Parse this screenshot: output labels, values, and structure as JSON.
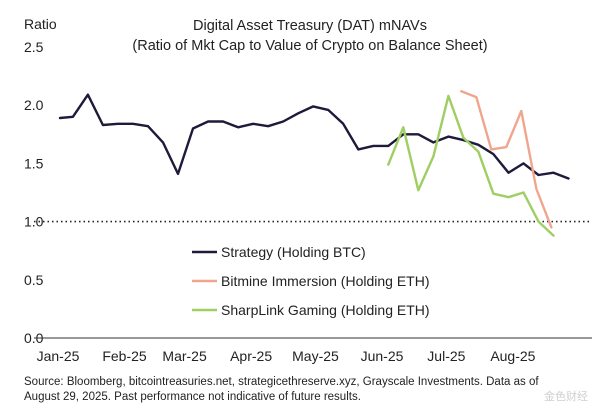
{
  "chart_data": {
    "type": "line",
    "title": "Digital Asset Treasury (DAT) mNAVs",
    "subtitle": "(Ratio of Mkt Cap to Value of Crypto on Balance Sheet)",
    "ylabel": "Ratio",
    "ylim": [
      0.0,
      2.5
    ],
    "yticks": [
      "2.5",
      "2.0",
      "1.5",
      "1.0",
      "0.5",
      "0.0"
    ],
    "xticks": [
      "Jan-25",
      "Feb-25",
      "Mar-25",
      "Apr-25",
      "May-25",
      "Jun-25",
      "Jul-25",
      "Aug-25"
    ],
    "x_start": "2025-01-01",
    "x_end": "2025-09-05",
    "reference_line": {
      "y": 1.0,
      "style": "dotted"
    },
    "grid": false,
    "legend_position": "center",
    "series": [
      {
        "name": "Strategy (Holding BTC)",
        "color": "#1d1a3a",
        "points": [
          [
            "2025-01-01",
            1.89
          ],
          [
            "2025-01-07",
            1.9
          ],
          [
            "2025-01-14",
            2.09
          ],
          [
            "2025-01-21",
            1.83
          ],
          [
            "2025-01-28",
            1.84
          ],
          [
            "2025-02-04",
            1.84
          ],
          [
            "2025-02-11",
            1.82
          ],
          [
            "2025-02-18",
            1.68
          ],
          [
            "2025-02-25",
            1.41
          ],
          [
            "2025-03-04",
            1.8
          ],
          [
            "2025-03-11",
            1.86
          ],
          [
            "2025-03-18",
            1.86
          ],
          [
            "2025-03-25",
            1.81
          ],
          [
            "2025-04-01",
            1.84
          ],
          [
            "2025-04-08",
            1.82
          ],
          [
            "2025-04-15",
            1.86
          ],
          [
            "2025-04-22",
            1.93
          ],
          [
            "2025-04-29",
            1.99
          ],
          [
            "2025-05-06",
            1.96
          ],
          [
            "2025-05-13",
            1.84
          ],
          [
            "2025-05-20",
            1.62
          ],
          [
            "2025-05-27",
            1.65
          ],
          [
            "2025-06-03",
            1.65
          ],
          [
            "2025-06-10",
            1.75
          ],
          [
            "2025-06-17",
            1.75
          ],
          [
            "2025-06-24",
            1.68
          ],
          [
            "2025-07-01",
            1.73
          ],
          [
            "2025-07-08",
            1.7
          ],
          [
            "2025-07-15",
            1.66
          ],
          [
            "2025-07-22",
            1.58
          ],
          [
            "2025-07-29",
            1.42
          ],
          [
            "2025-08-05",
            1.5
          ],
          [
            "2025-08-12",
            1.4
          ],
          [
            "2025-08-19",
            1.42
          ],
          [
            "2025-08-26",
            1.37
          ]
        ]
      },
      {
        "name": "Bitmine Immersion (Holding ETH)",
        "color": "#f0a58d",
        "points": [
          [
            "2025-07-07",
            2.12
          ],
          [
            "2025-07-14",
            2.07
          ],
          [
            "2025-07-21",
            1.62
          ],
          [
            "2025-07-28",
            1.64
          ],
          [
            "2025-08-04",
            1.95
          ],
          [
            "2025-08-11",
            1.28
          ],
          [
            "2025-08-18",
            0.95
          ]
        ]
      },
      {
        "name": "SharpLink Gaming (Holding ETH)",
        "color": "#9fce63",
        "points": [
          [
            "2025-06-03",
            1.49
          ],
          [
            "2025-06-10",
            1.81
          ],
          [
            "2025-06-17",
            1.27
          ],
          [
            "2025-06-24",
            1.56
          ],
          [
            "2025-07-01",
            2.08
          ],
          [
            "2025-07-08",
            1.72
          ],
          [
            "2025-07-15",
            1.6
          ],
          [
            "2025-07-22",
            1.24
          ],
          [
            "2025-07-29",
            1.21
          ],
          [
            "2025-08-05",
            1.25
          ],
          [
            "2025-08-12",
            1.0
          ],
          [
            "2025-08-19",
            0.88
          ]
        ]
      }
    ]
  },
  "source_lines": [
    "Source: Bloomberg, bitcointreasuries.net, strategicethreserve.xyz, Grayscale Investments. Data as of",
    "August 29, 2025. Past performance not indicative of future results."
  ],
  "watermark": "金色财经"
}
